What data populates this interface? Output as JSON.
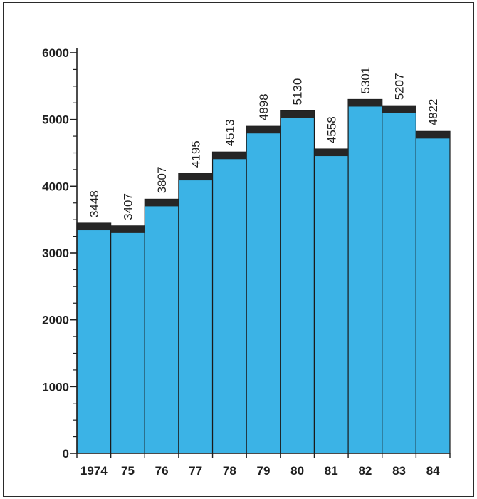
{
  "chart_data": {
    "type": "bar",
    "categories": [
      "1974",
      "75",
      "76",
      "77",
      "78",
      "79",
      "80",
      "81",
      "82",
      "83",
      "84"
    ],
    "values": [
      3448,
      3407,
      3807,
      4195,
      4513,
      4898,
      5130,
      4558,
      5301,
      5207,
      4822
    ],
    "data_labels": [
      "3448",
      "3407",
      "3807",
      "4195",
      "4513",
      "4898",
      "5130",
      "4558",
      "5301",
      "5207",
      "4822"
    ],
    "title": "",
    "xlabel": "",
    "ylabel": "",
    "ylim": [
      0,
      6000
    ],
    "yticks": [
      0,
      1000,
      2000,
      3000,
      4000,
      5000,
      6000
    ],
    "ytick_labels": [
      "0",
      "1000",
      "2000",
      "3000",
      "4000",
      "5000",
      "6000"
    ],
    "minor_ytick_step": 250,
    "grid": false,
    "legend": "none",
    "colors": {
      "bar_fill": "#3bb3e6",
      "bar_cap": "#262626",
      "bar_edge": "#1a1a1a",
      "axis": "#1f1f1f",
      "text": "#1f1f1f"
    }
  }
}
